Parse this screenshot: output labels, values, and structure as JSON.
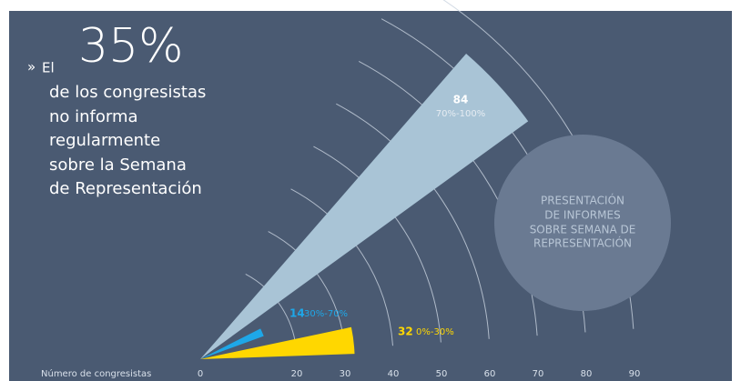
{
  "chart_data": {
    "type": "radial-bar",
    "intro_marker": "»",
    "intro_word": "El",
    "headline_number": "35%",
    "headline_lines": [
      "de los congresistas",
      "no informa",
      "regularmente",
      "sobre la Semana",
      "de Representación"
    ],
    "circle_lines": [
      "PRESENTACIÓN",
      "DE INFORMES",
      "SOBRE SEMANA DE",
      "REPRESENTACIÓN"
    ],
    "xlabel": "Número de congresistas",
    "categories": [
      "0%-30%",
      "30%-70%",
      "70%-100%"
    ],
    "values": [
      32,
      14,
      84
    ],
    "colors": [
      "#ffd700",
      "#1ea7e8",
      "#a9c4d6"
    ],
    "xlim": [
      0,
      90
    ],
    "xticks": [
      0,
      20,
      30,
      40,
      50,
      60,
      70,
      80,
      90
    ]
  }
}
